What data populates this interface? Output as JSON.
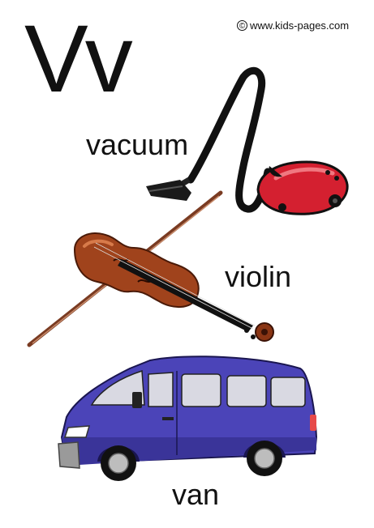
{
  "copyright": {
    "text": "www.kids-pages.com",
    "symbol": "©"
  },
  "letter": {
    "text": "Vv"
  },
  "words": {
    "vacuum": "vacuum",
    "violin": "violin",
    "van": "van"
  },
  "colors": {
    "vacuum_body": "#d42030",
    "violin_wood": "#a0431c",
    "van_body": "#4b44b8",
    "text": "#111111"
  }
}
